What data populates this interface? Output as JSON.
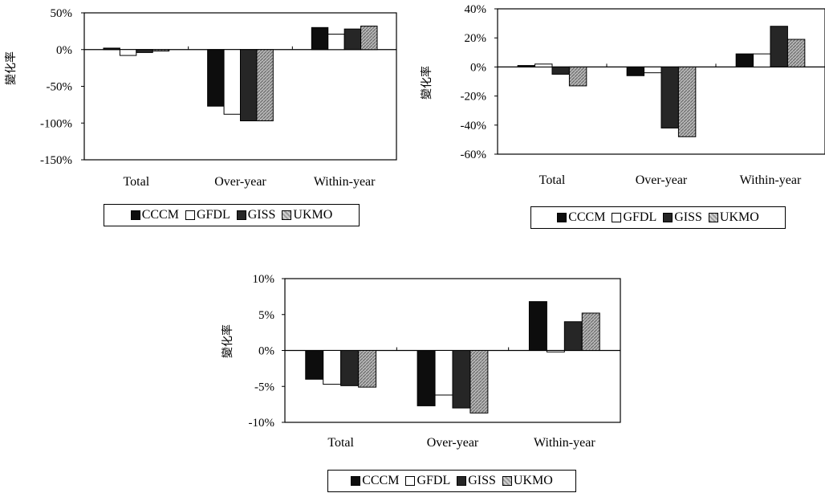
{
  "colors": {
    "CCCM": "#0d0d0d",
    "GFDL": "#ffffff",
    "GISS": "#262626",
    "UKMO": "hatch-gray"
  },
  "chart_data": [
    {
      "type": "bar",
      "ylabel": "變化率",
      "categories": [
        "Total",
        "Over-year",
        "Within-year"
      ],
      "ylim": [
        -150,
        50
      ],
      "yticks": [
        "50%",
        "0%",
        "-50%",
        "-100%",
        "-150%"
      ],
      "ytick_values": [
        50,
        0,
        -50,
        -100,
        -150
      ],
      "series": [
        {
          "name": "CCCM",
          "values": [
            2,
            -77,
            30
          ]
        },
        {
          "name": "GFDL",
          "values": [
            -8,
            -88,
            21
          ]
        },
        {
          "name": "GISS",
          "values": [
            -4,
            -97,
            28
          ]
        },
        {
          "name": "UKMO",
          "values": [
            -2,
            -97,
            32
          ]
        }
      ],
      "legend": [
        "CCCM",
        "GFDL",
        "GISS",
        "UKMO"
      ],
      "legend_placement": "bottom"
    },
    {
      "type": "bar",
      "ylabel": "變化率",
      "categories": [
        "Total",
        "Over-year",
        "Within-year"
      ],
      "ylim": [
        -60,
        40
      ],
      "yticks": [
        "40%",
        "20%",
        "0%",
        "-20%",
        "-40%",
        "-60%"
      ],
      "ytick_values": [
        40,
        20,
        0,
        -20,
        -40,
        -60
      ],
      "series": [
        {
          "name": "CCCM",
          "values": [
            1,
            -6,
            9
          ]
        },
        {
          "name": "GFDL",
          "values": [
            2,
            -4,
            9
          ]
        },
        {
          "name": "GISS",
          "values": [
            -5,
            -42,
            28
          ]
        },
        {
          "name": "UKMO",
          "values": [
            -13,
            -48,
            19
          ]
        }
      ],
      "legend": [
        "CCCM",
        "GFDL",
        "GISS",
        "UKMO"
      ],
      "legend_placement": "bottom"
    },
    {
      "type": "bar",
      "ylabel": "變化率",
      "categories": [
        "Total",
        "Over-year",
        "Within-year"
      ],
      "ylim": [
        -10,
        10
      ],
      "yticks": [
        "10%",
        "5%",
        "0%",
        "-5%",
        "-10%"
      ],
      "ytick_values": [
        10,
        5,
        0,
        -5,
        -10
      ],
      "series": [
        {
          "name": "CCCM",
          "values": [
            -4,
            -7.7,
            6.8
          ]
        },
        {
          "name": "GFDL",
          "values": [
            -4.7,
            -6.2,
            -0.2
          ]
        },
        {
          "name": "GISS",
          "values": [
            -4.9,
            -8,
            4
          ]
        },
        {
          "name": "UKMO",
          "values": [
            -5.1,
            -8.7,
            5.2
          ]
        }
      ],
      "legend": [
        "CCCM",
        "GFDL",
        "GISS",
        "UKMO"
      ],
      "legend_placement": "bottom"
    }
  ]
}
